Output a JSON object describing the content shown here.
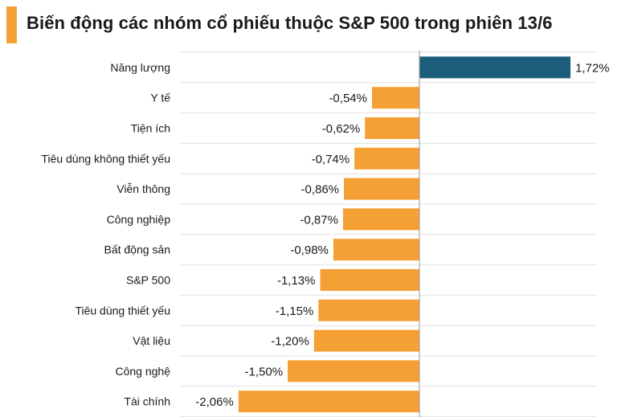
{
  "title": "Biến động các nhóm cổ phiếu thuộc S&P 500 trong phiên 13/6",
  "colors": {
    "accent": "#F5A035",
    "negative": "#F5A035",
    "positive": "#1D5E7C",
    "grid": "#E2E2E2",
    "axis": "#9A9A9A"
  },
  "chart_data": {
    "type": "bar",
    "orientation": "horizontal",
    "title": "Biến động các nhóm cổ phiếu thuộc S&P 500 trong phiên 13/6",
    "categories": [
      "Năng lượng",
      "Y tế",
      "Tiện ích",
      "Tiêu dùng không thiết yếu",
      "Viễn thông",
      "Công nghiệp",
      "Bất động sản",
      "S&P 500",
      "Tiêu dùng thiết yếu",
      "Vật liệu",
      "Công nghệ",
      "Tài chính"
    ],
    "values": [
      1.72,
      -0.54,
      -0.62,
      -0.74,
      -0.86,
      -0.87,
      -0.98,
      -1.13,
      -1.15,
      -1.2,
      -1.5,
      -2.06
    ],
    "labels": [
      "1,72%",
      "-0,54%",
      "-0,62%",
      "-0,74%",
      "-0,86%",
      "-0,87%",
      "-0,98%",
      "-1,13%",
      "-1,15%",
      "-1,20%",
      "-1,50%",
      "-2,06%"
    ],
    "unit": "%",
    "grid": true,
    "legend": "none"
  }
}
